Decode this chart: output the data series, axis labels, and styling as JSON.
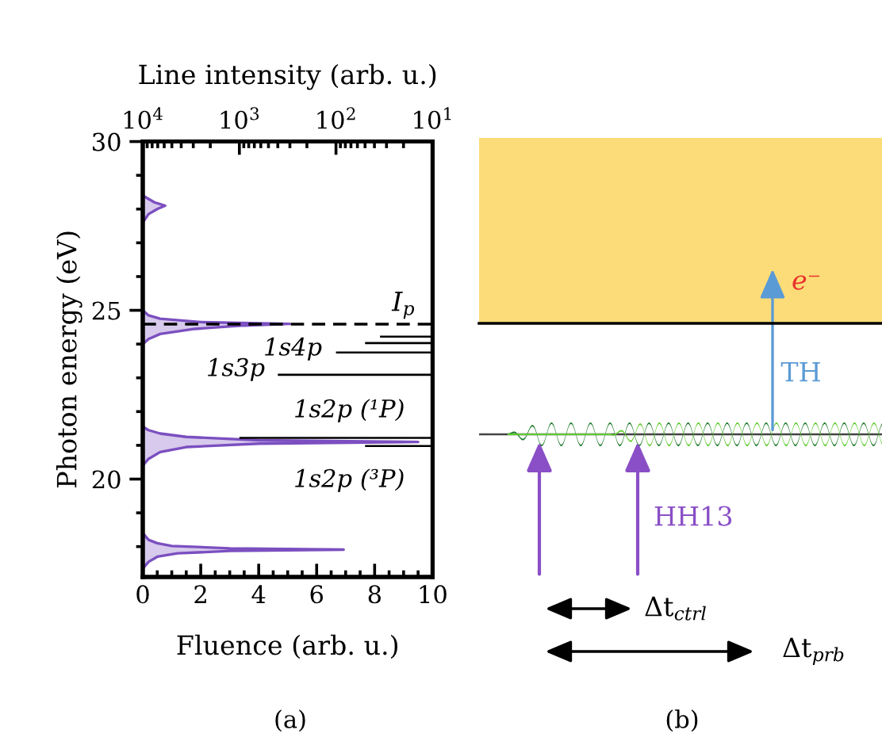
{
  "chart_data": [
    {
      "type": "area",
      "orientation": "horizontal",
      "xlabel": "Fluence (arb. u.)",
      "ylabel": "Photon energy (eV)",
      "x2label": "Line intensity (arb. u.)",
      "xlim": [
        0,
        10
      ],
      "xticks": [
        0,
        2,
        4,
        6,
        8,
        10
      ],
      "ylim": [
        17.1,
        30
      ],
      "yticks": [
        20,
        25,
        30
      ],
      "x2lim": [
        10000,
        10
      ],
      "x2ticks": [
        {
          "value": 10000,
          "label": "10$^{4}$"
        },
        {
          "value": 1000,
          "label": "10$^{3}$"
        },
        {
          "value": 100,
          "label": "10$^{2}$"
        },
        {
          "value": 10,
          "label": "10$^{1}$"
        }
      ],
      "log": "x2",
      "series": [
        {
          "type": "area",
          "color": "#7b4fc0",
          "x": [
            17.1,
            17.35,
            17.55,
            17.7,
            17.8,
            17.87,
            17.91,
            17.95,
            18.02,
            18.1,
            18.2,
            18.4,
            20.4,
            20.6,
            20.8,
            20.95,
            21.05,
            21.1,
            21.15,
            21.25,
            21.35,
            21.45,
            21.55,
            24.0,
            24.15,
            24.3,
            24.45,
            24.55,
            24.6,
            24.65,
            24.75,
            24.85,
            25.0,
            27.6,
            27.85,
            28.0,
            28.1,
            28.2,
            28.4,
            30
          ],
          "values": [
            0,
            0,
            0.2,
            0.5,
            1.2,
            3,
            6.93,
            3,
            1,
            0.5,
            0.2,
            0,
            0,
            0.2,
            0.6,
            1.5,
            4,
            9.5,
            4,
            1.5,
            0.6,
            0.2,
            0,
            0,
            0.2,
            0.6,
            1.8,
            3.5,
            5.07,
            2,
            0.6,
            0.2,
            0,
            0,
            0.2,
            0.5,
            0.77,
            0.4,
            0,
            0
          ]
        },
        {
          "type": "bar",
          "axis": "x2",
          "color": "#000000",
          "x": [
            20.98,
            21.22,
            23.09,
            23.75,
            24.03,
            24.22
          ],
          "values": [
            50,
            1000,
            400,
            100,
            50,
            35
          ]
        }
      ],
      "ref_lines": [
        {
          "axis": "y",
          "value": 24.59,
          "label": "I$_{p}$",
          "color": "#000000",
          "line_style": "dashed"
        }
      ],
      "annotations": [
        "1s4p",
        "1s3p",
        "1s2p (¹P)",
        "1s2p (³P)",
        "(a)"
      ]
    },
    {
      "type": "other",
      "annotations": [
        "e⁻",
        "TH",
        "HH13",
        "Δt$_{ctrl}$",
        "Δt$_{prb}$",
        "(b)"
      ]
    }
  ]
}
